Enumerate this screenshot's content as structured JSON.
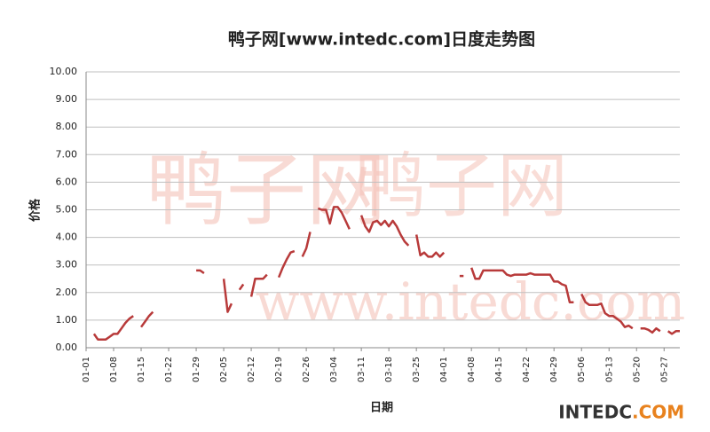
{
  "chart_data": {
    "type": "line",
    "title": "鸭子网[www.intedc.com]日度走势图",
    "x_label": "日期",
    "y_label": "价格",
    "watermark_logo": "鸭子网",
    "watermark_url": "www.intedc.com",
    "brand": "INTEDC",
    "brand_suffix": ".COM",
    "categories": [
      "01-01",
      null,
      null,
      null,
      null,
      null,
      null,
      "01-08",
      null,
      null,
      null,
      null,
      null,
      null,
      "01-15",
      null,
      null,
      null,
      null,
      null,
      null,
      "01-22",
      null,
      null,
      null,
      null,
      null,
      null,
      "01-29",
      null,
      null,
      null,
      null,
      null,
      null,
      "02-05",
      null,
      null,
      null,
      null,
      null,
      null,
      "02-12",
      null,
      null,
      null,
      null,
      null,
      null,
      "02-19",
      null,
      null,
      null,
      null,
      null,
      null,
      "02-26",
      null,
      null,
      null,
      null,
      null,
      null,
      "03-04",
      null,
      null,
      null,
      null,
      null,
      null,
      "03-11",
      null,
      null,
      null,
      null,
      null,
      null,
      "03-18",
      null,
      null,
      null,
      null,
      null,
      null,
      "03-25",
      null,
      null,
      null,
      null,
      null,
      null,
      "04-01",
      null,
      null,
      null,
      null,
      null,
      null,
      "04-08",
      null,
      null,
      null,
      null,
      null,
      null,
      "04-15",
      null,
      null,
      null,
      null,
      null,
      null,
      "04-22",
      null,
      null,
      null,
      null,
      null,
      null,
      "04-29",
      null,
      null,
      null,
      null,
      null,
      null,
      "05-06",
      null,
      null,
      null,
      null,
      null,
      null,
      "05-13",
      null,
      null,
      null,
      null,
      null,
      null,
      "05-20",
      null,
      null,
      null,
      null,
      null,
      null,
      "05-27",
      null,
      null,
      null,
      null
    ],
    "series": [
      {
        "color": "#b83a3a",
        "values": [
          null,
          null,
          0.5,
          0.3,
          0.3,
          0.3,
          0.4,
          0.5,
          0.5,
          0.7,
          0.9,
          1.05,
          1.15,
          null,
          0.75,
          0.95,
          1.15,
          1.3,
          null,
          null,
          null,
          null,
          null,
          null,
          null,
          null,
          null,
          null,
          2.8,
          2.8,
          2.7,
          null,
          null,
          null,
          null,
          2.5,
          1.3,
          1.6,
          null,
          2.1,
          2.3,
          null,
          1.85,
          2.5,
          2.5,
          2.5,
          2.65,
          null,
          null,
          2.55,
          2.9,
          3.2,
          3.45,
          3.5,
          null,
          3.3,
          3.6,
          4.2,
          null,
          5.05,
          5.0,
          5.0,
          4.5,
          5.1,
          5.1,
          4.9,
          4.6,
          4.3,
          null,
          null,
          4.8,
          4.4,
          4.2,
          4.55,
          4.6,
          4.45,
          4.6,
          4.4,
          4.6,
          4.4,
          4.1,
          3.85,
          3.7,
          null,
          4.1,
          3.35,
          3.45,
          3.3,
          3.3,
          3.45,
          3.3,
          3.45,
          null,
          null,
          null,
          2.6,
          2.6,
          null,
          2.9,
          2.5,
          2.5,
          2.8,
          2.8,
          2.8,
          2.8,
          2.8,
          2.8,
          2.65,
          2.6,
          2.65,
          2.65,
          2.65,
          2.65,
          2.7,
          2.65,
          2.65,
          2.65,
          2.65,
          2.65,
          2.4,
          2.4,
          2.3,
          2.25,
          1.65,
          1.65,
          null,
          1.95,
          1.65,
          1.55,
          1.55,
          1.55,
          1.6,
          1.25,
          1.15,
          1.15,
          1.05,
          0.95,
          0.75,
          0.8,
          0.7,
          null,
          0.7,
          0.7,
          0.65,
          0.55,
          0.7,
          0.6,
          null,
          0.6,
          0.5,
          0.6,
          0.6
        ]
      }
    ],
    "ylim": [
      0,
      10
    ],
    "yticks": [
      {
        "value": 0,
        "label": "0.00"
      },
      {
        "value": 1,
        "label": "1.00"
      },
      {
        "value": 2,
        "label": "2.00"
      },
      {
        "value": 3,
        "label": "3.00"
      },
      {
        "value": 4,
        "label": "4.00"
      },
      {
        "value": 5,
        "label": "5.00"
      },
      {
        "value": 6,
        "label": "6.00"
      },
      {
        "value": 7,
        "label": "7.00"
      },
      {
        "value": 8,
        "label": "8.00"
      },
      {
        "value": 9,
        "label": "9.00"
      },
      {
        "value": 10,
        "label": "10.00"
      }
    ],
    "grid": true
  }
}
